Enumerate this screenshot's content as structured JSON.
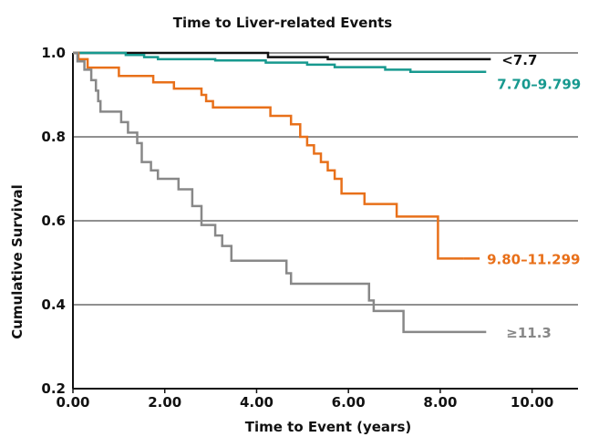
{
  "chart_data": {
    "type": "line",
    "title": "Time to Liver-related Events",
    "xlabel": "Time to Event (years)",
    "ylabel": "Cumulative Survival",
    "xlim": [
      0,
      11
    ],
    "ylim": [
      0.2,
      1.0
    ],
    "x_ticks": [
      "0.00",
      "2.00",
      "4.00",
      "6.00",
      "8.00",
      "10.00"
    ],
    "x_tick_values": [
      0,
      2,
      4,
      6,
      8,
      10
    ],
    "y_ticks": [
      "0.2",
      "0.4",
      "0.6",
      "0.8",
      "1.0"
    ],
    "y_tick_values": [
      0.2,
      0.4,
      0.6,
      0.8,
      1.0
    ],
    "grid": "horizontal",
    "step": true,
    "series": [
      {
        "name": "<7.7",
        "color": "#111111",
        "points": [
          [
            0.0,
            1.0
          ],
          [
            4.25,
            1.0
          ],
          [
            4.25,
            0.99
          ],
          [
            5.55,
            0.99
          ],
          [
            5.55,
            0.985
          ],
          [
            9.1,
            0.985
          ]
        ]
      },
      {
        "name": "7.70–9.799",
        "color": "#17998f",
        "points": [
          [
            0.0,
            1.0
          ],
          [
            1.15,
            1.0
          ],
          [
            1.15,
            0.995
          ],
          [
            1.55,
            0.995
          ],
          [
            1.55,
            0.99
          ],
          [
            1.85,
            0.99
          ],
          [
            1.85,
            0.985
          ],
          [
            3.1,
            0.985
          ],
          [
            3.1,
            0.982
          ],
          [
            4.2,
            0.982
          ],
          [
            4.2,
            0.977
          ],
          [
            5.1,
            0.977
          ],
          [
            5.1,
            0.972
          ],
          [
            5.7,
            0.972
          ],
          [
            5.7,
            0.966
          ],
          [
            6.8,
            0.966
          ],
          [
            6.8,
            0.96
          ],
          [
            7.35,
            0.96
          ],
          [
            7.35,
            0.955
          ],
          [
            9.0,
            0.955
          ]
        ]
      },
      {
        "name": "9.80–11.299",
        "color": "#e8701a",
        "points": [
          [
            0.0,
            1.0
          ],
          [
            0.12,
            1.0
          ],
          [
            0.12,
            0.985
          ],
          [
            0.32,
            0.985
          ],
          [
            0.32,
            0.965
          ],
          [
            1.0,
            0.965
          ],
          [
            1.0,
            0.945
          ],
          [
            1.75,
            0.945
          ],
          [
            1.75,
            0.93
          ],
          [
            2.2,
            0.93
          ],
          [
            2.2,
            0.915
          ],
          [
            2.8,
            0.915
          ],
          [
            2.8,
            0.9
          ],
          [
            2.9,
            0.9
          ],
          [
            2.9,
            0.885
          ],
          [
            3.05,
            0.885
          ],
          [
            3.05,
            0.87
          ],
          [
            4.3,
            0.87
          ],
          [
            4.3,
            0.85
          ],
          [
            4.75,
            0.85
          ],
          [
            4.75,
            0.83
          ],
          [
            4.95,
            0.83
          ],
          [
            4.95,
            0.8
          ],
          [
            5.1,
            0.8
          ],
          [
            5.1,
            0.78
          ],
          [
            5.25,
            0.78
          ],
          [
            5.25,
            0.76
          ],
          [
            5.4,
            0.76
          ],
          [
            5.4,
            0.74
          ],
          [
            5.55,
            0.74
          ],
          [
            5.55,
            0.72
          ],
          [
            5.7,
            0.72
          ],
          [
            5.7,
            0.7
          ],
          [
            5.85,
            0.7
          ],
          [
            5.85,
            0.665
          ],
          [
            6.35,
            0.665
          ],
          [
            6.35,
            0.64
          ],
          [
            7.05,
            0.64
          ],
          [
            7.05,
            0.61
          ],
          [
            7.95,
            0.61
          ],
          [
            7.95,
            0.51
          ],
          [
            8.5,
            0.51
          ]
        ]
      },
      {
        "name": "≥11.3",
        "color": "#888888",
        "points": [
          [
            0.0,
            1.0
          ],
          [
            0.1,
            1.0
          ],
          [
            0.1,
            0.98
          ],
          [
            0.25,
            0.98
          ],
          [
            0.25,
            0.96
          ],
          [
            0.4,
            0.96
          ],
          [
            0.4,
            0.935
          ],
          [
            0.5,
            0.935
          ],
          [
            0.5,
            0.91
          ],
          [
            0.55,
            0.91
          ],
          [
            0.55,
            0.885
          ],
          [
            0.6,
            0.885
          ],
          [
            0.6,
            0.86
          ],
          [
            1.05,
            0.86
          ],
          [
            1.05,
            0.835
          ],
          [
            1.2,
            0.835
          ],
          [
            1.2,
            0.81
          ],
          [
            1.4,
            0.81
          ],
          [
            1.4,
            0.785
          ],
          [
            1.5,
            0.785
          ],
          [
            1.5,
            0.74
          ],
          [
            1.7,
            0.74
          ],
          [
            1.7,
            0.72
          ],
          [
            1.85,
            0.72
          ],
          [
            1.85,
            0.7
          ],
          [
            2.3,
            0.7
          ],
          [
            2.3,
            0.675
          ],
          [
            2.6,
            0.675
          ],
          [
            2.6,
            0.635
          ],
          [
            2.8,
            0.635
          ],
          [
            2.8,
            0.59
          ],
          [
            3.1,
            0.59
          ],
          [
            3.1,
            0.565
          ],
          [
            3.25,
            0.565
          ],
          [
            3.25,
            0.54
          ],
          [
            3.45,
            0.54
          ],
          [
            3.45,
            0.505
          ],
          [
            4.65,
            0.505
          ],
          [
            4.65,
            0.475
          ],
          [
            4.75,
            0.475
          ],
          [
            4.75,
            0.45
          ],
          [
            6.45,
            0.45
          ],
          [
            6.45,
            0.41
          ],
          [
            6.55,
            0.41
          ],
          [
            6.55,
            0.385
          ],
          [
            7.2,
            0.385
          ],
          [
            7.2,
            0.335
          ],
          [
            9.0,
            0.335
          ]
        ]
      }
    ]
  }
}
